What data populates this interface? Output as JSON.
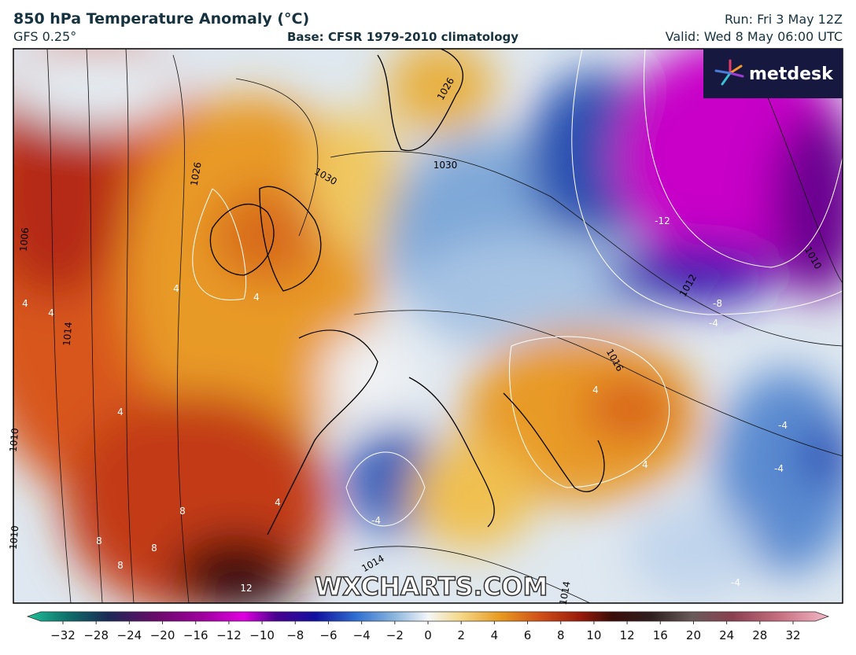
{
  "header": {
    "title": "850 hPa Temperature Anomaly (°C)",
    "model": "GFS 0.25°",
    "base": "Base: CFSR 1979-2010 climatology",
    "run": "Run: Fri 3 May 12Z",
    "valid": "Valid: Wed 8 May 06:00 UTC"
  },
  "logo": "metdesk",
  "watermark": "WXCHARTS.COM",
  "map_labels": [
    "1026",
    "1026",
    "1030",
    "1030",
    "1006",
    "1014",
    "1010",
    "1010",
    "1014",
    "1010",
    "1016",
    "1014",
    "1012",
    "-12",
    "-8",
    "-4",
    "4",
    "4",
    "4",
    "4",
    "4",
    "4",
    "4",
    "4",
    "-4",
    "-4",
    "-4",
    "-4",
    "8",
    "8",
    "8",
    "8",
    "12"
  ],
  "colorbar": {
    "ticks": [
      "−32",
      "−28",
      "−24",
      "−20",
      "−16",
      "−12",
      "−10",
      "−8",
      "−6",
      "−4",
      "−2",
      "0",
      "2",
      "4",
      "6",
      "8",
      "10",
      "12",
      "16",
      "20",
      "24",
      "28",
      "32"
    ]
  }
}
